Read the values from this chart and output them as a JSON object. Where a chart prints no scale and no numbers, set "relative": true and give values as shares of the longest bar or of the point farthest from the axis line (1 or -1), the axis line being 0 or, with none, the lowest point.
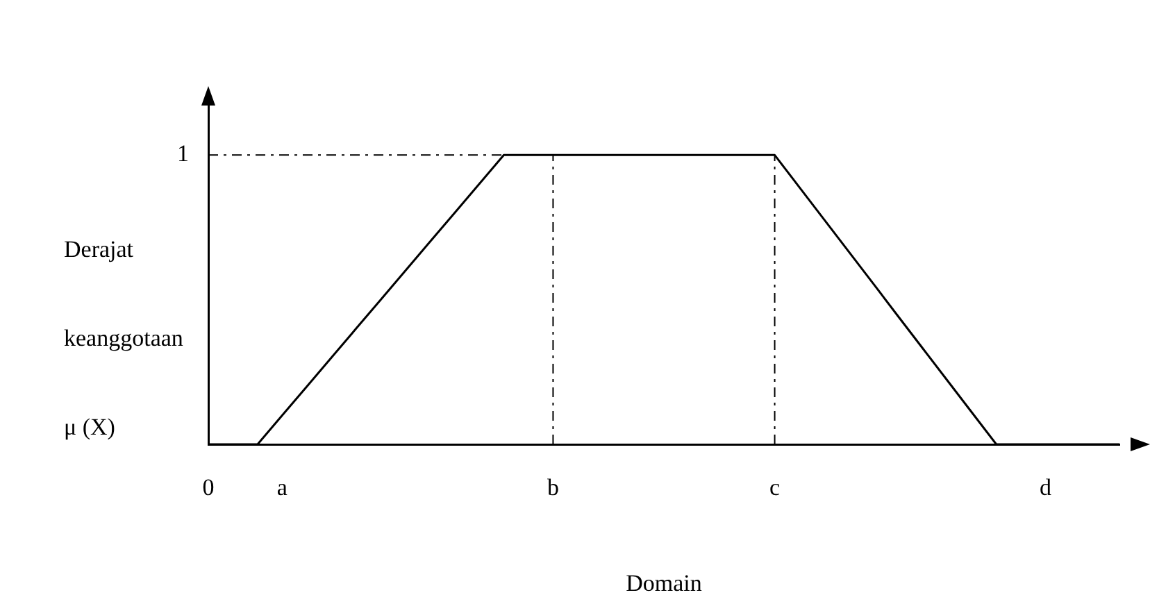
{
  "chart_data": {
    "type": "line",
    "xlabel": "Domain",
    "ylabel": "Derajat keanggotaan μ (X)",
    "relative": true,
    "categories": [
      "0",
      null,
      null,
      "a",
      null,
      null,
      null,
      null,
      null,
      null,
      null,
      null,
      null,
      null,
      "b",
      null,
      null,
      null,
      null,
      null,
      null,
      null,
      null,
      "c",
      null,
      null,
      null,
      null,
      null,
      null,
      null,
      null,
      null,
      null,
      "d",
      null,
      null,
      null
    ],
    "series": [
      {
        "color": "#000000",
        "values": [
          0,
          0,
          0,
          0.1,
          0.2,
          0.3,
          0.4,
          0.5,
          0.6,
          0.7,
          0.8,
          0.9,
          1,
          1,
          1,
          1,
          1,
          1,
          1,
          1,
          1,
          1,
          1,
          1,
          0.889,
          0.778,
          0.667,
          0.556,
          0.444,
          0.333,
          0.222,
          0.111,
          0,
          0,
          0,
          0,
          0,
          0
        ]
      }
    ],
    "ref_lines": [
      {
        "axis": "y",
        "value": 1,
        "label": "1",
        "color": "#000000",
        "line_style": "dashed"
      },
      {
        "axis": "x",
        "value": "b",
        "color": "#000000",
        "line_style": "dashed"
      },
      {
        "axis": "x",
        "value": "c",
        "color": "#000000",
        "line_style": "dashed"
      }
    ],
    "grid": false,
    "legend": false,
    "marker": "none",
    "line_style": "solid"
  }
}
